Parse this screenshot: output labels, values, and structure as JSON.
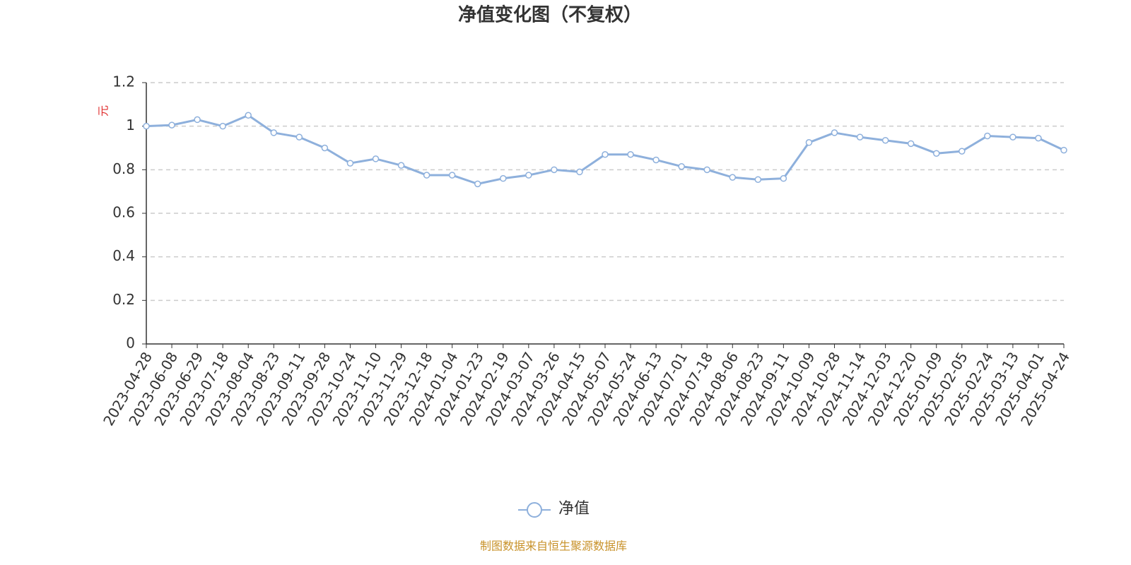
{
  "chart_data": {
    "type": "line",
    "title": "净值变化图（不复权）",
    "y_label": "元",
    "source": "制图数据来自恒生聚源数据库",
    "categories": [
      "2023-04-28",
      "2023-06-08",
      "2023-06-29",
      "2023-07-18",
      "2023-08-04",
      "2023-08-23",
      "2023-09-11",
      "2023-09-28",
      "2023-10-24",
      "2023-11-10",
      "2023-11-29",
      "2023-12-18",
      "2024-01-04",
      "2024-01-23",
      "2024-02-19",
      "2024-03-07",
      "2024-03-26",
      "2024-04-15",
      "2024-05-07",
      "2024-05-24",
      "2024-06-13",
      "2024-07-01",
      "2024-07-18",
      "2024-08-06",
      "2024-08-23",
      "2024-09-11",
      "2024-10-09",
      "2024-10-28",
      "2024-11-14",
      "2024-12-03",
      "2024-12-20",
      "2025-01-09",
      "2025-02-05",
      "2025-02-24",
      "2025-03-13",
      "2025-04-01",
      "2025-04-24"
    ],
    "series": [
      {
        "name": "净值",
        "color": "#8eb0dc",
        "values": [
          1.0,
          1.005,
          1.03,
          1.0,
          1.05,
          0.97,
          0.95,
          0.9,
          0.83,
          0.85,
          0.82,
          0.775,
          0.775,
          0.735,
          0.76,
          0.775,
          0.8,
          0.79,
          0.87,
          0.87,
          0.845,
          0.815,
          0.8,
          0.765,
          0.755,
          0.76,
          0.925,
          0.97,
          0.95,
          0.935,
          0.92,
          0.875,
          0.885,
          0.955,
          0.95,
          0.945,
          0.89
        ]
      }
    ],
    "ylim": [
      0,
      1.2
    ],
    "yticks": [
      0,
      0.2,
      0.4,
      0.6,
      0.8,
      1,
      1.2
    ],
    "grid": true
  }
}
